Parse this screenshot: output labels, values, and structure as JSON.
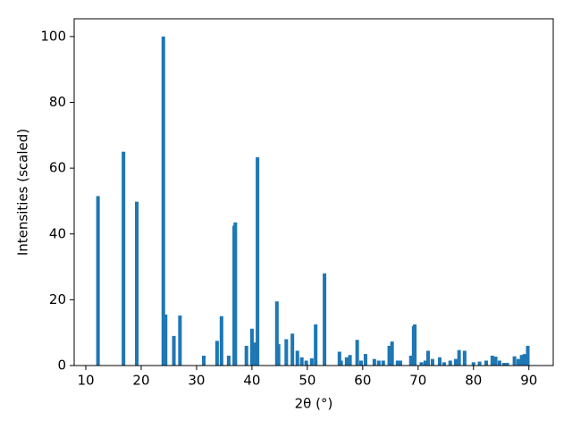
{
  "chart_data": {
    "type": "bar",
    "xlabel": "2θ (°)",
    "ylabel": "Intensities (scaled)",
    "color": "#1f77b4",
    "x": [
      12.2,
      16.8,
      19.2,
      24.0,
      24.4,
      25.9,
      27.0,
      31.3,
      33.7,
      34.5,
      35.8,
      36.8,
      37.0,
      39.0,
      40.0,
      40.5,
      41.0,
      44.5,
      44.8,
      46.2,
      47.3,
      48.2,
      49.0,
      49.8,
      50.8,
      51.5,
      53.1,
      55.8,
      56.1,
      57.1,
      57.7,
      59.0,
      59.7,
      60.5,
      62.1,
      62.9,
      63.7,
      64.8,
      65.3,
      66.3,
      66.8,
      68.7,
      69.2,
      69.4,
      70.6,
      71.3,
      71.8,
      72.6,
      73.9,
      74.7,
      75.8,
      76.8,
      77.4,
      78.4,
      80.0,
      81.1,
      82.3,
      83.4,
      84.0,
      84.7,
      85.5,
      86.1,
      87.4,
      88.1,
      88.7,
      89.2,
      89.8
    ],
    "values": [
      51.5,
      65,
      49.8,
      100,
      15.5,
      9,
      15.2,
      3,
      7.5,
      15,
      3,
      42.5,
      43.5,
      6,
      11.2,
      7,
      63.3,
      19.5,
      6.5,
      8,
      9.7,
      4.5,
      2.5,
      1.5,
      2.2,
      12.5,
      28,
      4.2,
      1.5,
      2.5,
      3.2,
      7.8,
      1.5,
      3.5,
      2,
      1.5,
      1.5,
      6,
      7.3,
      1.5,
      1.5,
      3,
      12,
      12.5,
      1,
      1.5,
      4.5,
      2,
      2.5,
      1,
      1.5,
      2,
      4.7,
      4.5,
      1,
      1.2,
      1.5,
      3,
      2.7,
      1.5,
      0.8,
      0.8,
      2.8,
      2,
      3.2,
      3.5,
      6
    ],
    "xlim": [
      7.9,
      94.4
    ],
    "xticks": [
      10,
      20,
      30,
      40,
      50,
      60,
      70,
      80,
      90
    ],
    "ylim": [
      0,
      105.4
    ],
    "yticks": [
      0,
      20,
      40,
      60,
      80,
      100
    ],
    "grid": false
  }
}
